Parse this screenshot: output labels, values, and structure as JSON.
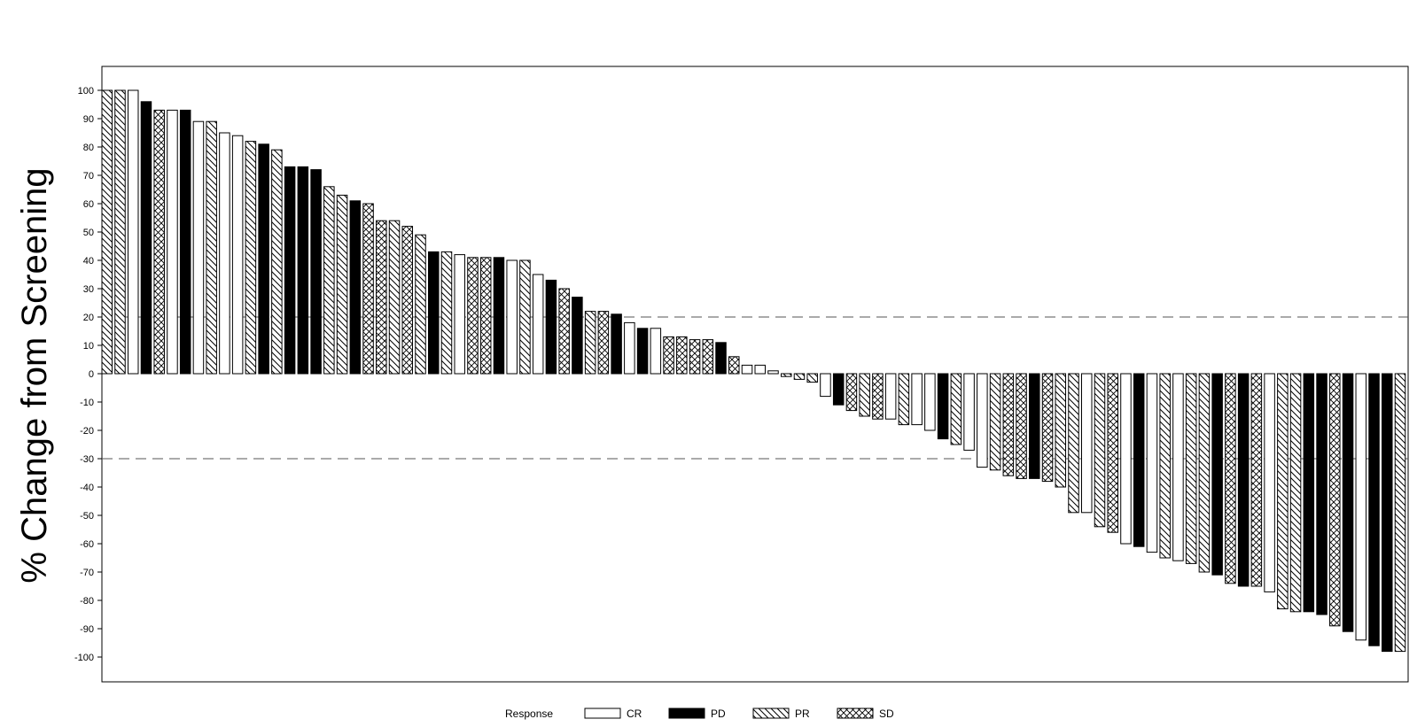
{
  "chart_data": {
    "type": "bar",
    "ylabel": "% Change from Screening",
    "ylim": [
      -108,
      108
    ],
    "yticks": [
      100,
      90,
      80,
      70,
      60,
      50,
      40,
      30,
      20,
      10,
      0,
      -10,
      -20,
      -30,
      -40,
      -50,
      -60,
      -70,
      -80,
      -90,
      -100
    ],
    "reference_lines": [
      20,
      -30
    ],
    "grid": false,
    "legend": {
      "title": "Response",
      "position": "bottom",
      "entries": [
        {
          "label": "CR",
          "fill": "white"
        },
        {
          "label": "PD",
          "fill": "black"
        },
        {
          "label": "PR",
          "fill": "diagonal-hatch"
        },
        {
          "label": "SD",
          "fill": "crosshatch"
        }
      ]
    },
    "bars": [
      {
        "value": 100,
        "response": "PR"
      },
      {
        "value": 100,
        "response": "PR"
      },
      {
        "value": 100,
        "response": "CR"
      },
      {
        "value": 96,
        "response": "PD"
      },
      {
        "value": 93,
        "response": "SD"
      },
      {
        "value": 93,
        "response": "CR"
      },
      {
        "value": 93,
        "response": "PD"
      },
      {
        "value": 89,
        "response": "CR"
      },
      {
        "value": 89,
        "response": "PR"
      },
      {
        "value": 85,
        "response": "CR"
      },
      {
        "value": 84,
        "response": "CR"
      },
      {
        "value": 82,
        "response": "PR"
      },
      {
        "value": 81,
        "response": "PD"
      },
      {
        "value": 79,
        "response": "PR"
      },
      {
        "value": 73,
        "response": "PD"
      },
      {
        "value": 73,
        "response": "PD"
      },
      {
        "value": 72,
        "response": "PD"
      },
      {
        "value": 66,
        "response": "PR"
      },
      {
        "value": 63,
        "response": "PR"
      },
      {
        "value": 61,
        "response": "PD"
      },
      {
        "value": 60,
        "response": "SD"
      },
      {
        "value": 54,
        "response": "SD"
      },
      {
        "value": 54,
        "response": "PR"
      },
      {
        "value": 52,
        "response": "SD"
      },
      {
        "value": 49,
        "response": "PR"
      },
      {
        "value": 43,
        "response": "PD"
      },
      {
        "value": 43,
        "response": "PR"
      },
      {
        "value": 42,
        "response": "CR"
      },
      {
        "value": 41,
        "response": "SD"
      },
      {
        "value": 41,
        "response": "SD"
      },
      {
        "value": 41,
        "response": "PD"
      },
      {
        "value": 40,
        "response": "CR"
      },
      {
        "value": 40,
        "response": "PR"
      },
      {
        "value": 35,
        "response": "CR"
      },
      {
        "value": 33,
        "response": "PD"
      },
      {
        "value": 30,
        "response": "SD"
      },
      {
        "value": 27,
        "response": "PD"
      },
      {
        "value": 22,
        "response": "PR"
      },
      {
        "value": 22,
        "response": "SD"
      },
      {
        "value": 21,
        "response": "PD"
      },
      {
        "value": 18,
        "response": "CR"
      },
      {
        "value": 16,
        "response": "PD"
      },
      {
        "value": 16,
        "response": "CR"
      },
      {
        "value": 13,
        "response": "SD"
      },
      {
        "value": 13,
        "response": "SD"
      },
      {
        "value": 12,
        "response": "SD"
      },
      {
        "value": 12,
        "response": "SD"
      },
      {
        "value": 11,
        "response": "PD"
      },
      {
        "value": 6,
        "response": "SD"
      },
      {
        "value": 3,
        "response": "CR"
      },
      {
        "value": 3,
        "response": "CR"
      },
      {
        "value": 1,
        "response": "CR"
      },
      {
        "value": -1,
        "response": "PR"
      },
      {
        "value": -2,
        "response": "PR"
      },
      {
        "value": -3,
        "response": "PR"
      },
      {
        "value": -8,
        "response": "CR"
      },
      {
        "value": -11,
        "response": "PD"
      },
      {
        "value": -13,
        "response": "SD"
      },
      {
        "value": -15,
        "response": "PR"
      },
      {
        "value": -16,
        "response": "SD"
      },
      {
        "value": -16,
        "response": "CR"
      },
      {
        "value": -18,
        "response": "PR"
      },
      {
        "value": -18,
        "response": "CR"
      },
      {
        "value": -20,
        "response": "CR"
      },
      {
        "value": -23,
        "response": "PD"
      },
      {
        "value": -25,
        "response": "PR"
      },
      {
        "value": -27,
        "response": "CR"
      },
      {
        "value": -33,
        "response": "CR"
      },
      {
        "value": -34,
        "response": "PR"
      },
      {
        "value": -36,
        "response": "SD"
      },
      {
        "value": -37,
        "response": "SD"
      },
      {
        "value": -37,
        "response": "PD"
      },
      {
        "value": -38,
        "response": "SD"
      },
      {
        "value": -40,
        "response": "PR"
      },
      {
        "value": -49,
        "response": "PR"
      },
      {
        "value": -49,
        "response": "CR"
      },
      {
        "value": -54,
        "response": "PR"
      },
      {
        "value": -56,
        "response": "SD"
      },
      {
        "value": -60,
        "response": "CR"
      },
      {
        "value": -61,
        "response": "PD"
      },
      {
        "value": -63,
        "response": "CR"
      },
      {
        "value": -65,
        "response": "PR"
      },
      {
        "value": -66,
        "response": "CR"
      },
      {
        "value": -67,
        "response": "PR"
      },
      {
        "value": -70,
        "response": "PR"
      },
      {
        "value": -71,
        "response": "PD"
      },
      {
        "value": -74,
        "response": "SD"
      },
      {
        "value": -75,
        "response": "PD"
      },
      {
        "value": -75,
        "response": "SD"
      },
      {
        "value": -77,
        "response": "CR"
      },
      {
        "value": -83,
        "response": "PR"
      },
      {
        "value": -84,
        "response": "PR"
      },
      {
        "value": -84,
        "response": "PD"
      },
      {
        "value": -85,
        "response": "PD"
      },
      {
        "value": -89,
        "response": "SD"
      },
      {
        "value": -91,
        "response": "PD"
      },
      {
        "value": -94,
        "response": "CR"
      },
      {
        "value": -96,
        "response": "PD"
      },
      {
        "value": -98,
        "response": "PD"
      },
      {
        "value": -98,
        "response": "PR"
      }
    ]
  }
}
